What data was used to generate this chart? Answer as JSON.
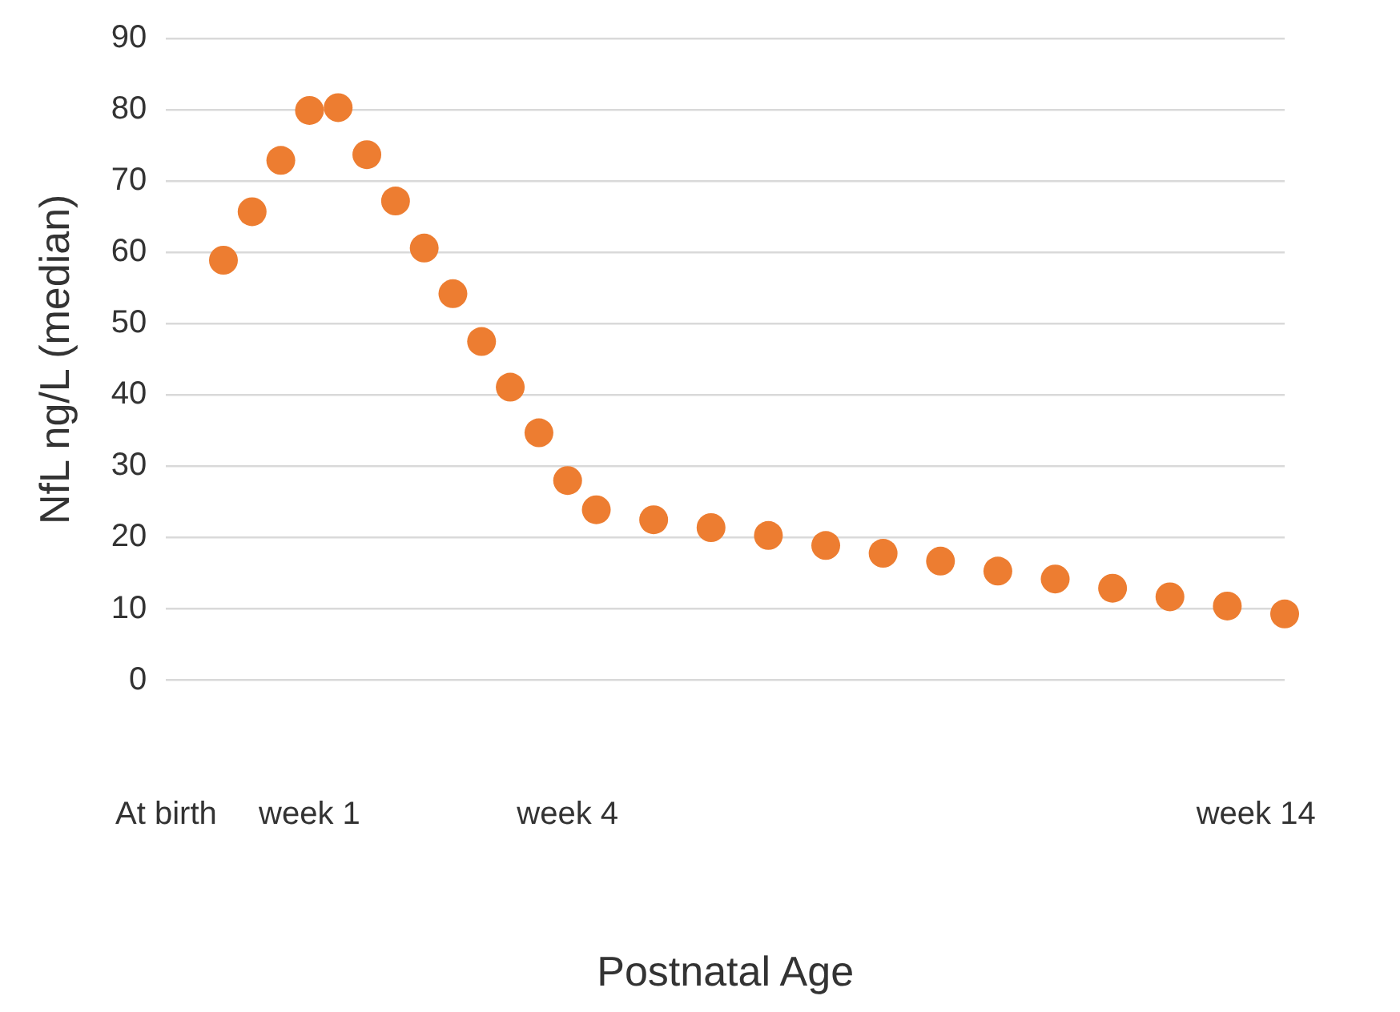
{
  "chart_data": {
    "type": "scatter",
    "xlabel": "Postnatal Age",
    "ylabel": "NfL ng/L (median)",
    "categories": [
      "At birth",
      null,
      null,
      null,
      null,
      "week 1",
      null,
      null,
      null,
      null,
      null,
      null,
      null,
      null,
      "week 4",
      null,
      null,
      null,
      null,
      null,
      null,
      null,
      null,
      null,
      null,
      null,
      null,
      null,
      null,
      null,
      null,
      null,
      null,
      null,
      null,
      null,
      null,
      null,
      "week 14",
      null
    ],
    "series": [
      {
        "color": "#ed7d31",
        "values": [
          null,
          null,
          58.9,
          65.7,
          72.9,
          79.9,
          80.3,
          73.7,
          67.2,
          60.6,
          54.2,
          47.5,
          41.1,
          34.7,
          28.0,
          23.9,
          null,
          22.5,
          null,
          21.4,
          null,
          20.3,
          null,
          18.9,
          null,
          17.8,
          null,
          16.7,
          null,
          15.3,
          null,
          14.2,
          null,
          12.9,
          null,
          11.7,
          null,
          10.4,
          null,
          9.3
        ]
      }
    ],
    "ylim": [
      0,
      90
    ],
    "yticks": [
      0,
      10,
      20,
      30,
      40,
      50,
      60,
      70,
      80,
      90
    ],
    "grid": "y",
    "legend": false,
    "marker": "circle"
  }
}
